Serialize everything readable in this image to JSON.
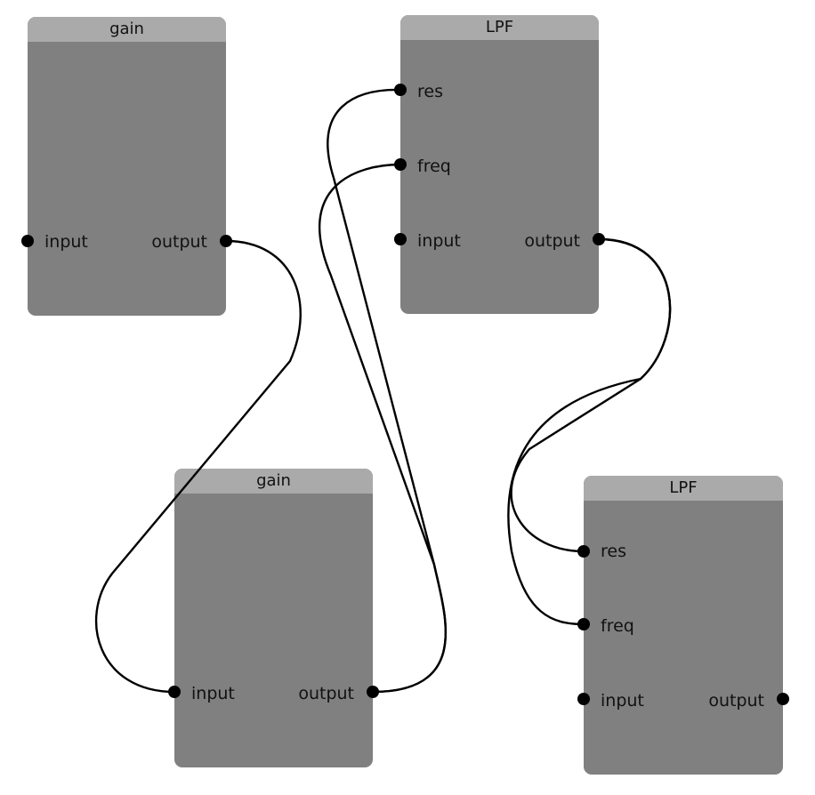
{
  "nodes": {
    "gain1": {
      "title": "gain",
      "ports": {
        "input": "input",
        "output": "output"
      }
    },
    "lpf1": {
      "title": "LPF",
      "ports": {
        "res": "res",
        "freq": "freq",
        "input": "input",
        "output": "output"
      }
    },
    "gain2": {
      "title": "gain",
      "ports": {
        "input": "input",
        "output": "output"
      }
    },
    "lpf2": {
      "title": "LPF",
      "ports": {
        "res": "res",
        "freq": "freq",
        "input": "input",
        "output": "output"
      }
    }
  },
  "connections": [
    {
      "from": "gain1.output",
      "to": "gain2.input"
    },
    {
      "from": "gain2.output",
      "to": "lpf1.res"
    },
    {
      "from": "gain2.output",
      "to": "lpf1.freq"
    },
    {
      "from": "lpf1.output",
      "to": "lpf2.res"
    },
    {
      "from": "lpf1.output",
      "to": "lpf2.freq"
    }
  ],
  "colors": {
    "node_body": "#808080",
    "node_header": "#aaaaaa",
    "wire": "#000000",
    "port": "#000000"
  }
}
